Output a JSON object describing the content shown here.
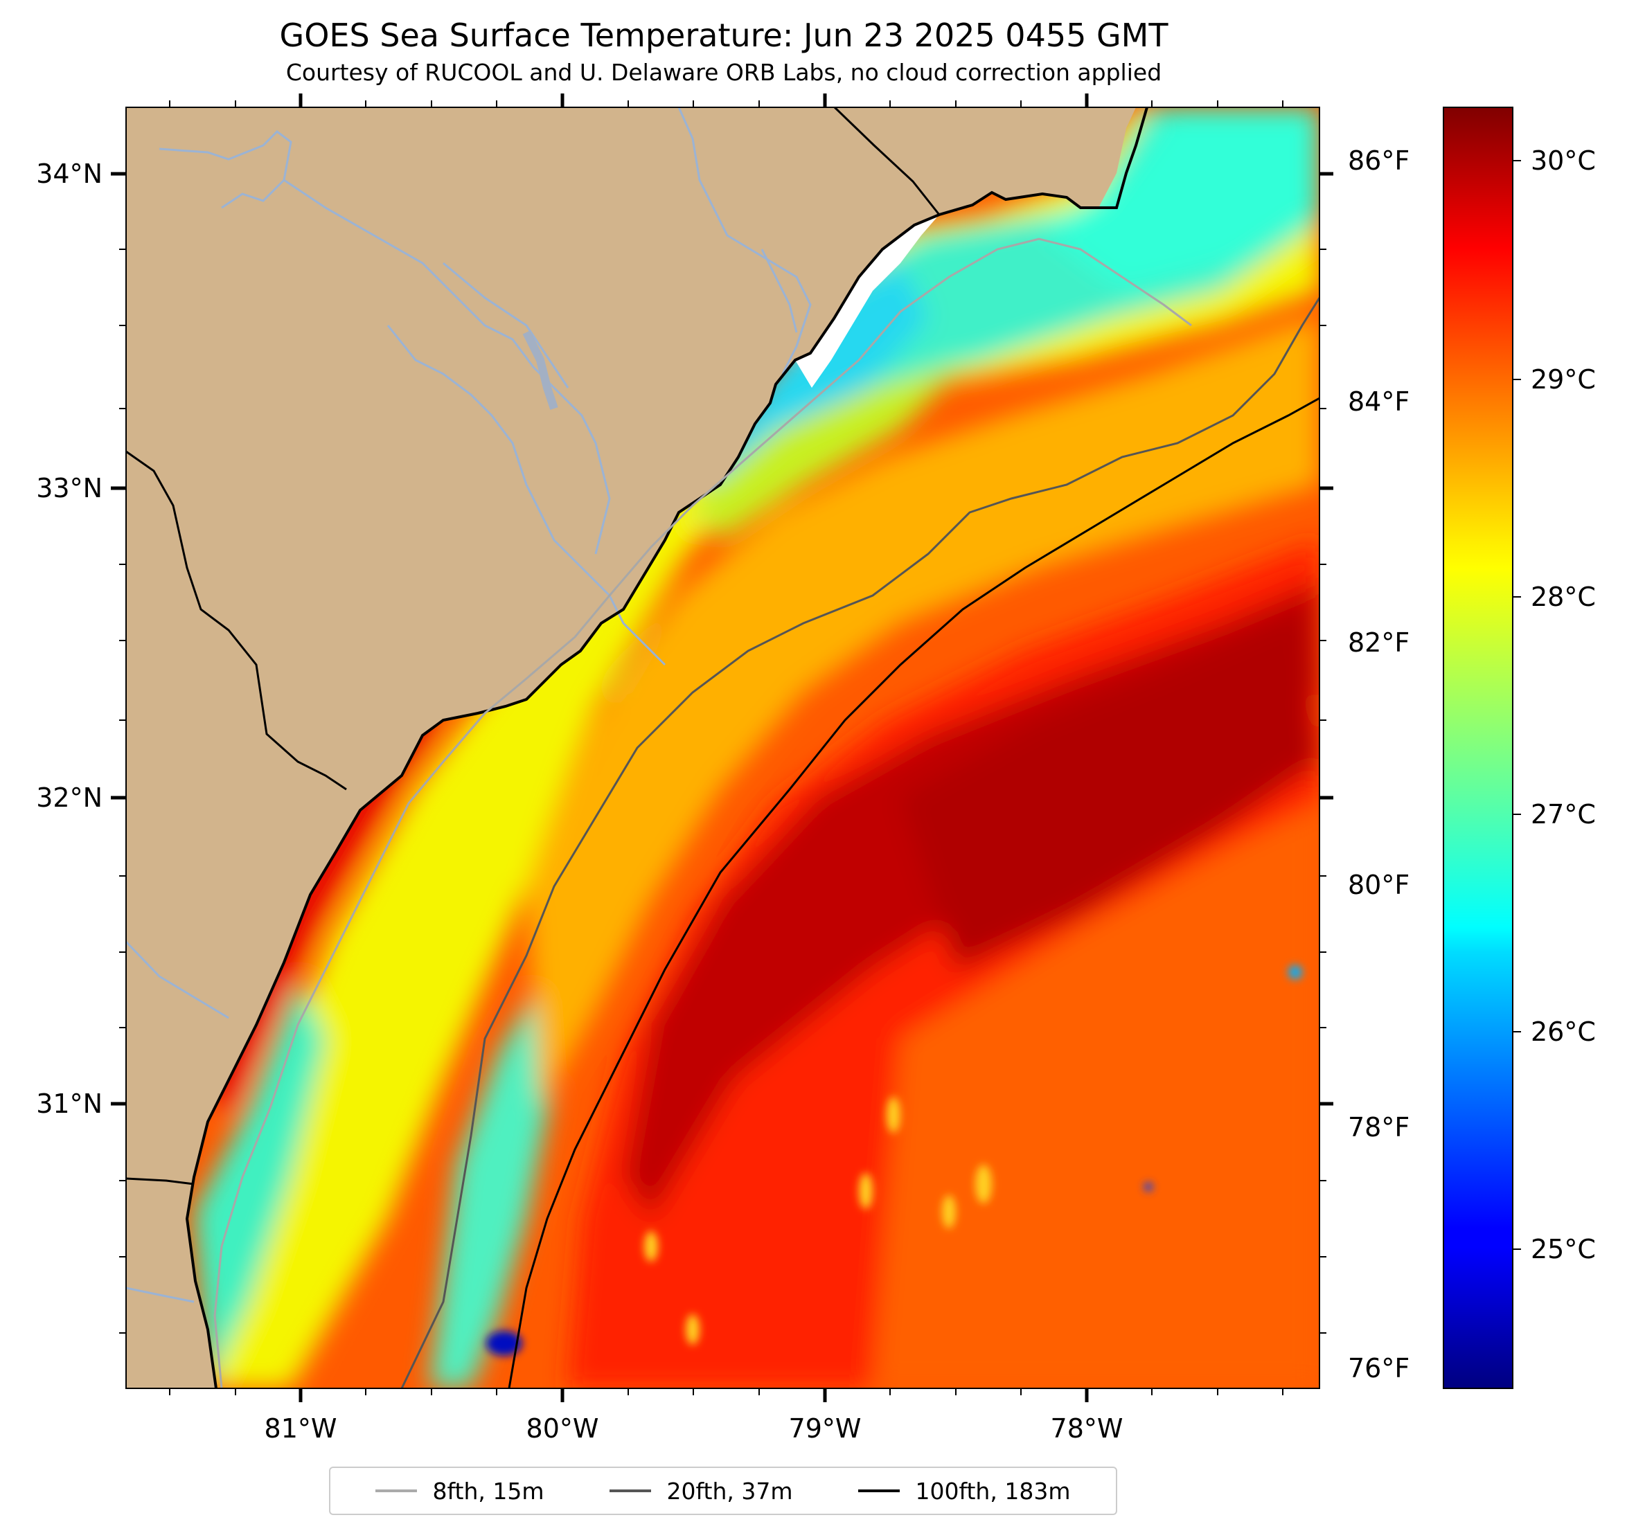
{
  "title": "GOES Sea Surface Temperature: Jun 23 2025 0455 GMT",
  "subtitle": "Courtesy of RUCOOL and U. Delaware ORB Labs, no cloud correction applied",
  "map": {
    "extent": {
      "lon_min": -81.67,
      "lon_max": -77.1,
      "lat_min": 30.15,
      "lat_max": 34.22
    },
    "lat_ticks": [
      {
        "value": 34,
        "label": "34°N"
      },
      {
        "value": 33,
        "label": "33°N"
      },
      {
        "value": 32,
        "label": "32°N"
      },
      {
        "value": 31,
        "label": "31°N"
      }
    ],
    "lon_ticks": [
      {
        "value": -81,
        "label": "81°W"
      },
      {
        "value": -80,
        "label": "80°W"
      },
      {
        "value": -79,
        "label": "79°W"
      },
      {
        "value": -78,
        "label": "78°W"
      }
    ],
    "land_color": "#d2b48c",
    "river_color": "#9bb3d4",
    "boundary_color": "#000000",
    "colormap": "jet"
  },
  "fahrenheit_axis": {
    "ticks": [
      {
        "value": 86,
        "label": "86°F"
      },
      {
        "value": 84,
        "label": "84°F"
      },
      {
        "value": 82,
        "label": "82°F"
      },
      {
        "value": 80,
        "label": "80°F"
      },
      {
        "value": 78,
        "label": "78°F"
      },
      {
        "value": 76,
        "label": "76°F"
      }
    ]
  },
  "colorbar": {
    "colormap": "jet",
    "vmin_c": 24.4,
    "vmax_c": 30.22,
    "ticks": [
      {
        "value": 30,
        "label": "30°C"
      },
      {
        "value": 29,
        "label": "29°C"
      },
      {
        "value": 28,
        "label": "28°C"
      },
      {
        "value": 27,
        "label": "27°C"
      },
      {
        "value": 26,
        "label": "26°C"
      },
      {
        "value": 25,
        "label": "25°C"
      }
    ]
  },
  "legend": {
    "placement": "bottom-center",
    "items": [
      {
        "label": "8fth, 15m",
        "color": "#aaaaaa"
      },
      {
        "label": "20fth, 37m",
        "color": "#555555"
      },
      {
        "label": "100fth, 183m",
        "color": "#000000"
      }
    ]
  }
}
